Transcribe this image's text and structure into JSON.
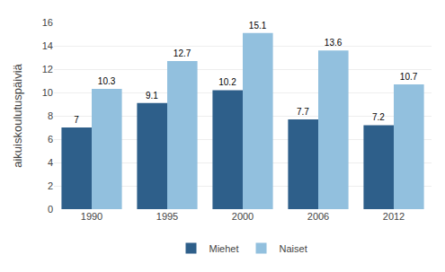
{
  "chart_data": {
    "type": "bar",
    "categories": [
      "1990",
      "1995",
      "2000",
      "2006",
      "2012"
    ],
    "series": [
      {
        "name": "Miehet",
        "color": "#2e5f8a",
        "values": [
          7,
          9.1,
          10.2,
          7.7,
          7.2
        ]
      },
      {
        "name": "Naiset",
        "color": "#92c0de",
        "values": [
          10.3,
          12.7,
          15.1,
          13.6,
          10.7
        ]
      }
    ],
    "ylabel": "aikuiskoulutuspäiviä",
    "ylim": [
      0,
      16
    ],
    "yticks": [
      0,
      2,
      4,
      6,
      8,
      10,
      12,
      14,
      16
    ],
    "grid": true,
    "legend": "bottom",
    "data_labels": true
  }
}
